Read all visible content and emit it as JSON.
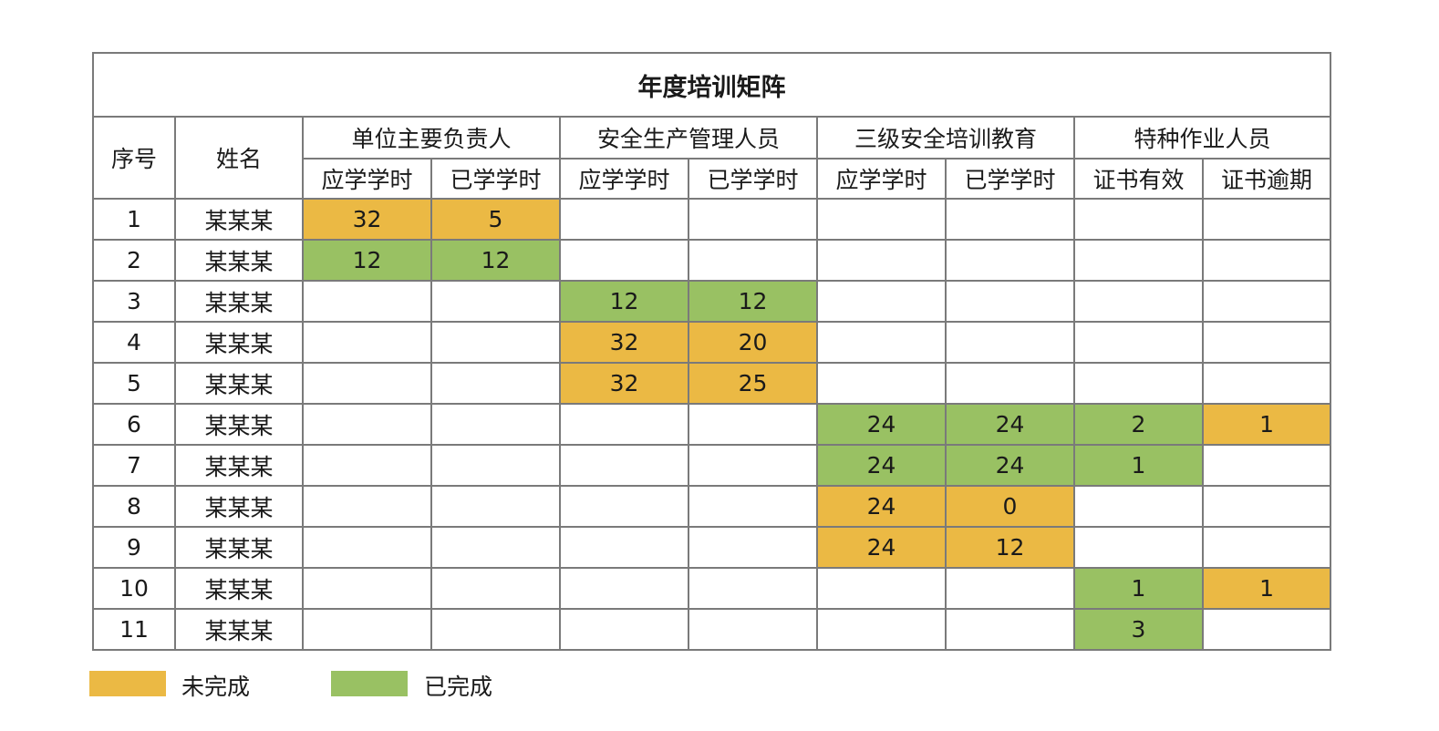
{
  "title": "年度培训矩阵",
  "headers": {
    "no": "序号",
    "name": "姓名",
    "groups": [
      "单位主要负责人",
      "安全生产管理人员",
      "三级安全培训教育",
      "特种作业人员"
    ],
    "subs": [
      "应学学时",
      "已学学时",
      "应学学时",
      "已学学时",
      "应学学时",
      "已学学时",
      "证书有效",
      "证书逾期"
    ]
  },
  "rows": [
    {
      "no": "1",
      "name": "某某某",
      "cells": [
        {
          "v": "32",
          "s": "pending"
        },
        {
          "v": "5",
          "s": "pending"
        },
        {
          "v": "",
          "s": ""
        },
        {
          "v": "",
          "s": ""
        },
        {
          "v": "",
          "s": ""
        },
        {
          "v": "",
          "s": ""
        },
        {
          "v": "",
          "s": ""
        },
        {
          "v": "",
          "s": ""
        }
      ]
    },
    {
      "no": "2",
      "name": "某某某",
      "cells": [
        {
          "v": "12",
          "s": "done"
        },
        {
          "v": "12",
          "s": "done"
        },
        {
          "v": "",
          "s": ""
        },
        {
          "v": "",
          "s": ""
        },
        {
          "v": "",
          "s": ""
        },
        {
          "v": "",
          "s": ""
        },
        {
          "v": "",
          "s": ""
        },
        {
          "v": "",
          "s": ""
        }
      ]
    },
    {
      "no": "3",
      "name": "某某某",
      "cells": [
        {
          "v": "",
          "s": ""
        },
        {
          "v": "",
          "s": ""
        },
        {
          "v": "12",
          "s": "done"
        },
        {
          "v": "12",
          "s": "done"
        },
        {
          "v": "",
          "s": ""
        },
        {
          "v": "",
          "s": ""
        },
        {
          "v": "",
          "s": ""
        },
        {
          "v": "",
          "s": ""
        }
      ]
    },
    {
      "no": "4",
      "name": "某某某",
      "cells": [
        {
          "v": "",
          "s": ""
        },
        {
          "v": "",
          "s": ""
        },
        {
          "v": "32",
          "s": "pending"
        },
        {
          "v": "20",
          "s": "pending"
        },
        {
          "v": "",
          "s": ""
        },
        {
          "v": "",
          "s": ""
        },
        {
          "v": "",
          "s": ""
        },
        {
          "v": "",
          "s": ""
        }
      ]
    },
    {
      "no": "5",
      "name": "某某某",
      "cells": [
        {
          "v": "",
          "s": ""
        },
        {
          "v": "",
          "s": ""
        },
        {
          "v": "32",
          "s": "pending"
        },
        {
          "v": "25",
          "s": "pending"
        },
        {
          "v": "",
          "s": ""
        },
        {
          "v": "",
          "s": ""
        },
        {
          "v": "",
          "s": ""
        },
        {
          "v": "",
          "s": ""
        }
      ]
    },
    {
      "no": "6",
      "name": "某某某",
      "cells": [
        {
          "v": "",
          "s": ""
        },
        {
          "v": "",
          "s": ""
        },
        {
          "v": "",
          "s": ""
        },
        {
          "v": "",
          "s": ""
        },
        {
          "v": "24",
          "s": "done"
        },
        {
          "v": "24",
          "s": "done"
        },
        {
          "v": "2",
          "s": "done"
        },
        {
          "v": "1",
          "s": "pending"
        }
      ]
    },
    {
      "no": "7",
      "name": "某某某",
      "cells": [
        {
          "v": "",
          "s": ""
        },
        {
          "v": "",
          "s": ""
        },
        {
          "v": "",
          "s": ""
        },
        {
          "v": "",
          "s": ""
        },
        {
          "v": "24",
          "s": "done"
        },
        {
          "v": "24",
          "s": "done"
        },
        {
          "v": "1",
          "s": "done"
        },
        {
          "v": "",
          "s": ""
        }
      ]
    },
    {
      "no": "8",
      "name": "某某某",
      "cells": [
        {
          "v": "",
          "s": ""
        },
        {
          "v": "",
          "s": ""
        },
        {
          "v": "",
          "s": ""
        },
        {
          "v": "",
          "s": ""
        },
        {
          "v": "24",
          "s": "pending"
        },
        {
          "v": "0",
          "s": "pending"
        },
        {
          "v": "",
          "s": ""
        },
        {
          "v": "",
          "s": ""
        }
      ]
    },
    {
      "no": "9",
      "name": "某某某",
      "cells": [
        {
          "v": "",
          "s": ""
        },
        {
          "v": "",
          "s": ""
        },
        {
          "v": "",
          "s": ""
        },
        {
          "v": "",
          "s": ""
        },
        {
          "v": "24",
          "s": "pending"
        },
        {
          "v": "12",
          "s": "pending"
        },
        {
          "v": "",
          "s": ""
        },
        {
          "v": "",
          "s": ""
        }
      ]
    },
    {
      "no": "10",
      "name": "某某某",
      "cells": [
        {
          "v": "",
          "s": ""
        },
        {
          "v": "",
          "s": ""
        },
        {
          "v": "",
          "s": ""
        },
        {
          "v": "",
          "s": ""
        },
        {
          "v": "",
          "s": ""
        },
        {
          "v": "",
          "s": ""
        },
        {
          "v": "1",
          "s": "done"
        },
        {
          "v": "1",
          "s": "pending"
        }
      ]
    },
    {
      "no": "11",
      "name": "某某某",
      "cells": [
        {
          "v": "",
          "s": ""
        },
        {
          "v": "",
          "s": ""
        },
        {
          "v": "",
          "s": ""
        },
        {
          "v": "",
          "s": ""
        },
        {
          "v": "",
          "s": ""
        },
        {
          "v": "",
          "s": ""
        },
        {
          "v": "3",
          "s": "done"
        },
        {
          "v": "",
          "s": ""
        }
      ]
    }
  ],
  "legend": [
    {
      "label": "未完成",
      "color": "#ebb944"
    },
    {
      "label": "已完成",
      "color": "#99c163"
    }
  ]
}
